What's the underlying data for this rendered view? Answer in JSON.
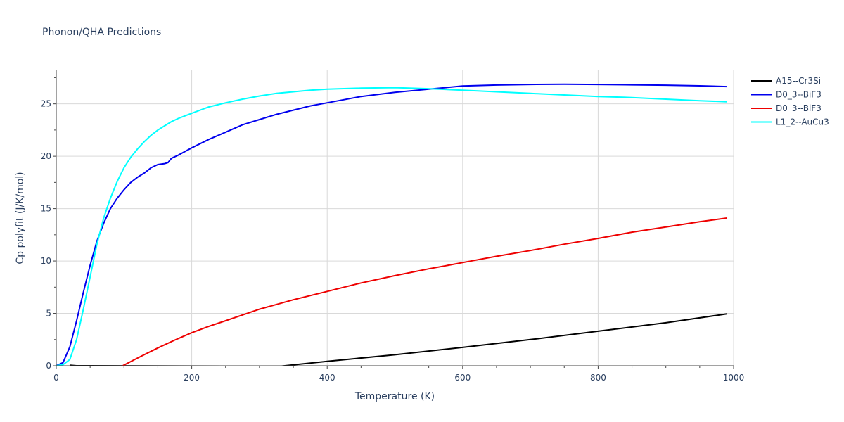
{
  "chart_data": {
    "type": "line",
    "title": "Phonon/QHA Predictions",
    "xlabel": "Temperature (K)",
    "ylabel": "Cp polyfit (J/K/mol)",
    "xlim": [
      0,
      1000
    ],
    "ylim": [
      0,
      28.2
    ],
    "xticks": [
      0,
      200,
      400,
      600,
      800,
      1000
    ],
    "yticks": [
      0,
      5,
      10,
      15,
      20,
      25
    ],
    "grid": true,
    "legend_position": "top-right",
    "series": [
      {
        "name": "A15--Cr3Si",
        "color": "#000000",
        "x": [
          20,
          30,
          330,
          400,
          500,
          600,
          700,
          800,
          900,
          990
        ],
        "y": [
          0.05,
          0.0,
          -0.05,
          0.42,
          1.05,
          1.75,
          2.5,
          3.3,
          4.1,
          4.95
        ]
      },
      {
        "name": "D0_3--BiF3",
        "color": "#0000ee",
        "x": [
          0,
          10,
          20,
          30,
          40,
          50,
          60,
          70,
          80,
          90,
          100,
          110,
          120,
          130,
          140,
          150,
          160,
          165,
          170,
          180,
          200,
          225,
          250,
          275,
          300,
          325,
          350,
          375,
          400,
          425,
          450,
          500,
          550,
          600,
          650,
          700,
          750,
          800,
          850,
          900,
          950,
          990
        ],
        "y": [
          0.0,
          0.3,
          1.8,
          4.3,
          7.0,
          9.6,
          11.9,
          13.6,
          15.0,
          16.0,
          16.8,
          17.5,
          18.0,
          18.4,
          18.9,
          19.2,
          19.3,
          19.4,
          19.8,
          20.1,
          20.8,
          21.6,
          22.3,
          23.0,
          23.5,
          24.0,
          24.4,
          24.8,
          25.1,
          25.4,
          25.7,
          26.1,
          26.4,
          26.7,
          26.8,
          26.85,
          26.88,
          26.85,
          26.82,
          26.78,
          26.72,
          26.65
        ]
      },
      {
        "name": "D0_3--BiF3",
        "color": "#ee0000",
        "x": [
          98,
          125,
          150,
          175,
          200,
          225,
          250,
          275,
          300,
          350,
          400,
          450,
          500,
          550,
          575,
          600,
          625,
          650,
          700,
          750,
          800,
          850,
          900,
          950,
          990
        ],
        "y": [
          0.0,
          0.9,
          1.7,
          2.45,
          3.15,
          3.75,
          4.3,
          4.85,
          5.4,
          6.3,
          7.1,
          7.9,
          8.6,
          9.25,
          9.55,
          9.85,
          10.15,
          10.45,
          11.0,
          11.6,
          12.15,
          12.75,
          13.25,
          13.75,
          14.1
        ]
      },
      {
        "name": "L1_2--AuCu3",
        "color": "#00ffff",
        "x": [
          0,
          10,
          20,
          30,
          40,
          50,
          60,
          70,
          80,
          90,
          100,
          110,
          120,
          130,
          140,
          150,
          160,
          170,
          180,
          200,
          225,
          250,
          275,
          300,
          325,
          350,
          375,
          400,
          450,
          500,
          550,
          600,
          650,
          700,
          750,
          800,
          850,
          900,
          950,
          990
        ],
        "y": [
          0.0,
          0.1,
          0.6,
          2.5,
          5.4,
          8.5,
          11.6,
          14.1,
          16.0,
          17.6,
          18.9,
          19.9,
          20.7,
          21.4,
          22.0,
          22.5,
          22.9,
          23.3,
          23.6,
          24.1,
          24.7,
          25.1,
          25.45,
          25.75,
          26.0,
          26.15,
          26.3,
          26.4,
          26.5,
          26.55,
          26.45,
          26.3,
          26.15,
          26.0,
          25.85,
          25.7,
          25.6,
          25.45,
          25.3,
          25.2
        ]
      }
    ]
  }
}
